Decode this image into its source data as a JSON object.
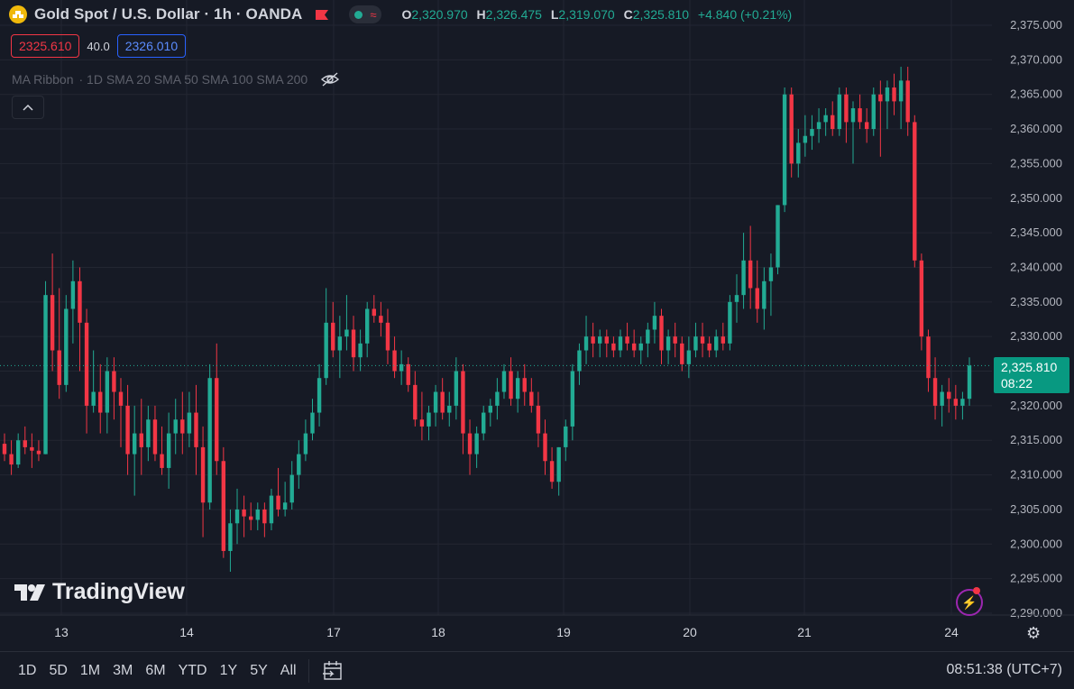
{
  "header": {
    "title": "Gold Spot / U.S. Dollar · 1h · OANDA",
    "ohlc": [
      {
        "k": "O",
        "v": "2,320.970"
      },
      {
        "k": "H",
        "v": "2,326.475"
      },
      {
        "k": "L",
        "v": "2,319.070"
      },
      {
        "k": "C",
        "v": "2,325.810"
      }
    ],
    "change": "+4.840 (+0.21%)"
  },
  "trade": {
    "sell": "2325.610",
    "spread": "40.0",
    "buy": "2326.010"
  },
  "indicator": {
    "name": "MA Ribbon",
    "params": "· 1D SMA 20 SMA 50 SMA 100 SMA 200"
  },
  "watermark": "TradingView",
  "last_price": {
    "value": "2,325.810",
    "countdown": "08:22"
  },
  "bottom": {
    "ranges": [
      "1D",
      "5D",
      "1M",
      "3M",
      "6M",
      "YTD",
      "1Y",
      "5Y",
      "All"
    ],
    "clock": "08:51:38 (UTC+7)"
  },
  "colors": {
    "up": "#22ab94",
    "down": "#f23645",
    "background": "#161a25",
    "grid": "#232632"
  },
  "chart_data": {
    "type": "candlestick",
    "ylim": [
      2290,
      2375
    ],
    "y_ticks": [
      "2,375.000",
      "2,370.000",
      "2,365.000",
      "2,360.000",
      "2,355.000",
      "2,350.000",
      "2,345.000",
      "2,340.000",
      "2,335.000",
      "2,330.000",
      "2,325.000",
      "2,320.000",
      "2,315.000",
      "2,310.000",
      "2,305.000",
      "2,300.000",
      "2,295.000",
      "2,290.000"
    ],
    "x_ticks": [
      "13",
      "14",
      "17",
      "18",
      "19",
      "20",
      "21",
      "24"
    ],
    "candles": [
      [
        2314.5,
        2316,
        2312,
        2313
      ],
      [
        2313,
        2315,
        2310,
        2311.5
      ],
      [
        2311.5,
        2316,
        2311,
        2315
      ],
      [
        2315,
        2317,
        2313,
        2314
      ],
      [
        2314,
        2316,
        2311,
        2313.5
      ],
      [
        2313.5,
        2315,
        2312,
        2313
      ],
      [
        2313,
        2338,
        2313,
        2336
      ],
      [
        2336,
        2342,
        2325,
        2328
      ],
      [
        2328,
        2337,
        2321,
        2323
      ],
      [
        2323,
        2336,
        2322,
        2334
      ],
      [
        2334,
        2341,
        2329,
        2338
      ],
      [
        2338,
        2340,
        2325,
        2332
      ],
      [
        2332,
        2334,
        2316,
        2320
      ],
      [
        2320,
        2328,
        2319,
        2322
      ],
      [
        2322,
        2326,
        2316,
        2319
      ],
      [
        2319,
        2327,
        2316,
        2325
      ],
      [
        2325,
        2327,
        2318,
        2322
      ],
      [
        2322,
        2324,
        2314,
        2320
      ],
      [
        2320,
        2323,
        2310,
        2313
      ],
      [
        2313,
        2320,
        2307,
        2316
      ],
      [
        2316,
        2321,
        2310,
        2314
      ],
      [
        2314,
        2320,
        2312,
        2318
      ],
      [
        2318,
        2320,
        2312,
        2313
      ],
      [
        2313,
        2317,
        2310,
        2311
      ],
      [
        2311,
        2319,
        2308,
        2316
      ],
      [
        2316,
        2321,
        2313,
        2318
      ],
      [
        2318,
        2322,
        2313,
        2316
      ],
      [
        2316,
        2322,
        2314,
        2319
      ],
      [
        2319,
        2323,
        2310,
        2314
      ],
      [
        2314,
        2317,
        2301,
        2306
      ],
      [
        2306,
        2326,
        2305,
        2324
      ],
      [
        2324,
        2329,
        2310,
        2312
      ],
      [
        2312,
        2314,
        2298,
        2299
      ],
      [
        2299,
        2305,
        2296,
        2303
      ],
      [
        2303,
        2308,
        2300,
        2305
      ],
      [
        2305,
        2307,
        2301,
        2304
      ],
      [
        2304,
        2306,
        2302,
        2303.5
      ],
      [
        2303.5,
        2306,
        2302,
        2305
      ],
      [
        2305,
        2306,
        2301,
        2303
      ],
      [
        2303,
        2308,
        2302,
        2307
      ],
      [
        2307,
        2311,
        2304,
        2305
      ],
      [
        2305,
        2309,
        2304,
        2306
      ],
      [
        2306,
        2312,
        2305,
        2310
      ],
      [
        2310,
        2315,
        2308,
        2313
      ],
      [
        2313,
        2318,
        2312,
        2316
      ],
      [
        2316,
        2321,
        2315,
        2319
      ],
      [
        2319,
        2326,
        2317,
        2324
      ],
      [
        2324,
        2337,
        2323,
        2332
      ],
      [
        2332,
        2335,
        2327,
        2328
      ],
      [
        2328,
        2333,
        2324,
        2330
      ],
      [
        2330,
        2336,
        2328,
        2331
      ],
      [
        2331,
        2333,
        2325,
        2327
      ],
      [
        2327,
        2331,
        2325,
        2329
      ],
      [
        2329,
        2335,
        2327,
        2334
      ],
      [
        2334,
        2336,
        2332,
        2333
      ],
      [
        2333,
        2335,
        2330,
        2332
      ],
      [
        2332,
        2334,
        2326,
        2328
      ],
      [
        2328,
        2330,
        2324,
        2325
      ],
      [
        2325,
        2328,
        2323,
        2326
      ],
      [
        2326,
        2327,
        2322,
        2323
      ],
      [
        2323,
        2325,
        2317,
        2318
      ],
      [
        2318,
        2322,
        2315,
        2317
      ],
      [
        2317,
        2320,
        2315,
        2319
      ],
      [
        2319,
        2323,
        2317,
        2322
      ],
      [
        2322,
        2324,
        2318,
        2319
      ],
      [
        2319,
        2322,
        2317,
        2320
      ],
      [
        2320,
        2327,
        2318,
        2325
      ],
      [
        2325,
        2326,
        2313,
        2316
      ],
      [
        2316,
        2318,
        2310,
        2313
      ],
      [
        2313,
        2317,
        2311,
        2316
      ],
      [
        2316,
        2320,
        2315,
        2319
      ],
      [
        2319,
        2321,
        2317,
        2320
      ],
      [
        2320,
        2324,
        2318,
        2322
      ],
      [
        2322,
        2326,
        2321,
        2325
      ],
      [
        2325,
        2327,
        2320,
        2321
      ],
      [
        2321,
        2325,
        2319,
        2324
      ],
      [
        2324,
        2326,
        2320,
        2322
      ],
      [
        2322,
        2324,
        2319,
        2320
      ],
      [
        2320,
        2322,
        2314,
        2316
      ],
      [
        2316,
        2318,
        2310,
        2312
      ],
      [
        2312,
        2314,
        2308,
        2309
      ],
      [
        2309,
        2314,
        2307,
        2314
      ],
      [
        2314,
        2318,
        2312,
        2317
      ],
      [
        2317,
        2326,
        2315,
        2325
      ],
      [
        2325,
        2329,
        2323,
        2328
      ],
      [
        2328,
        2333,
        2326,
        2330
      ],
      [
        2330,
        2332,
        2327,
        2329
      ],
      [
        2329,
        2331,
        2327,
        2330
      ],
      [
        2330,
        2331,
        2327,
        2329
      ],
      [
        2329,
        2330,
        2327,
        2328
      ],
      [
        2328,
        2331,
        2327,
        2330
      ],
      [
        2330,
        2332,
        2328,
        2329
      ],
      [
        2329,
        2331,
        2327,
        2328
      ],
      [
        2328,
        2330,
        2326,
        2329
      ],
      [
        2329,
        2332,
        2327,
        2331
      ],
      [
        2331,
        2335,
        2329,
        2333
      ],
      [
        2333,
        2334,
        2326,
        2328
      ],
      [
        2328,
        2331,
        2326,
        2330
      ],
      [
        2330,
        2332,
        2327,
        2329
      ],
      [
        2329,
        2330,
        2325,
        2326
      ],
      [
        2326,
        2330,
        2324,
        2328
      ],
      [
        2328,
        2332,
        2327,
        2330
      ],
      [
        2330,
        2332,
        2327,
        2329
      ],
      [
        2329,
        2330,
        2327,
        2328
      ],
      [
        2328,
        2331,
        2327,
        2330
      ],
      [
        2330,
        2332,
        2328,
        2329
      ],
      [
        2329,
        2336,
        2328,
        2335
      ],
      [
        2335,
        2339,
        2332,
        2336
      ],
      [
        2336,
        2345,
        2334,
        2341
      ],
      [
        2341,
        2346,
        2334,
        2337
      ],
      [
        2337,
        2341,
        2332,
        2334
      ],
      [
        2334,
        2340,
        2331,
        2338
      ],
      [
        2338,
        2342,
        2333,
        2340
      ],
      [
        2340,
        2349,
        2339,
        2349
      ],
      [
        2349,
        2366,
        2348,
        2365
      ],
      [
        2365,
        2366,
        2353,
        2355
      ],
      [
        2355,
        2360,
        2353,
        2358
      ],
      [
        2358,
        2362,
        2356,
        2359
      ],
      [
        2359,
        2362,
        2357,
        2360
      ],
      [
        2360,
        2363,
        2358,
        2361
      ],
      [
        2361,
        2363,
        2359,
        2362
      ],
      [
        2362,
        2364,
        2359,
        2360
      ],
      [
        2360,
        2366,
        2359,
        2365
      ],
      [
        2365,
        2366,
        2358,
        2361
      ],
      [
        2361,
        2364,
        2355,
        2363
      ],
      [
        2363,
        2365,
        2360,
        2361
      ],
      [
        2361,
        2363,
        2358,
        2360
      ],
      [
        2360,
        2366,
        2359,
        2365
      ],
      [
        2365,
        2367,
        2356,
        2364
      ],
      [
        2364,
        2367,
        2360,
        2366
      ],
      [
        2366,
        2368,
        2362,
        2364
      ],
      [
        2364,
        2369,
        2360,
        2367
      ],
      [
        2367,
        2369,
        2359,
        2361
      ],
      [
        2361,
        2362,
        2340,
        2341
      ],
      [
        2341,
        2342,
        2328,
        2330
      ],
      [
        2330,
        2331,
        2322,
        2324
      ],
      [
        2324,
        2327,
        2318,
        2320
      ],
      [
        2320,
        2323,
        2317,
        2322
      ],
      [
        2322,
        2324,
        2319,
        2321
      ],
      [
        2321,
        2323,
        2318,
        2320
      ],
      [
        2320,
        2322,
        2318,
        2321
      ],
      [
        2321,
        2327,
        2320,
        2325.81
      ]
    ]
  }
}
